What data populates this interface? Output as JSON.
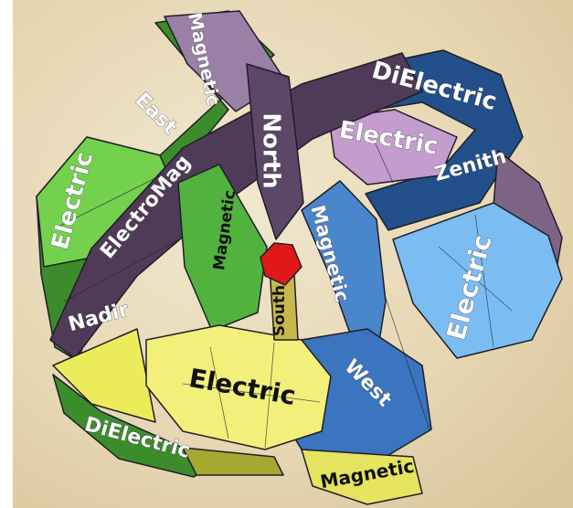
{
  "labels": [
    "Magnetic",
    "East",
    "DiElectric",
    "Electric",
    "North",
    "Zenith",
    "Electric",
    "ElectroMag",
    "Magnetic",
    "Magnetic",
    "Electric",
    "South",
    "Nadir",
    "Electric",
    "West",
    "DiElectric",
    "Magnetic"
  ]
}
